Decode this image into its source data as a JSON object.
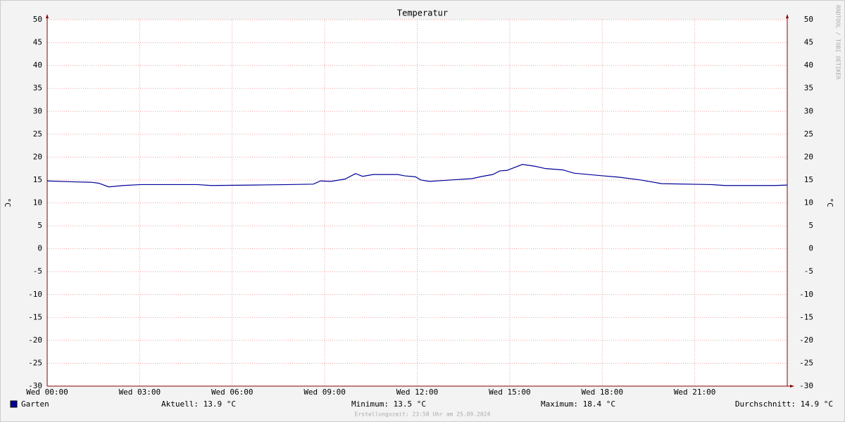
{
  "chart_data": {
    "type": "line",
    "title": "Temperatur",
    "y_label": "°C",
    "y2_label": "°C",
    "watermark": "RRDTOOL / TOBI OETIKER",
    "footer": "Erstellungszeit: 23:58 Uhr am 25.09.2024",
    "xlim": [
      0,
      24
    ],
    "xticks": [
      {
        "value": 0,
        "label": "Wed 00:00"
      },
      {
        "value": 3,
        "label": "Wed 03:00"
      },
      {
        "value": 6,
        "label": "Wed 06:00"
      },
      {
        "value": 9,
        "label": "Wed 09:00"
      },
      {
        "value": 12,
        "label": "Wed 12:00"
      },
      {
        "value": 15,
        "label": "Wed 15:00"
      },
      {
        "value": 18,
        "label": "Wed 18:00"
      },
      {
        "value": 21,
        "label": "Wed 21:00"
      }
    ],
    "ylim": [
      -30,
      50
    ],
    "yticks": [
      -30,
      -25,
      -20,
      -15,
      -10,
      -5,
      0,
      5,
      10,
      15,
      20,
      25,
      30,
      35,
      40,
      45,
      50
    ],
    "grid": true,
    "x": [
      0,
      0.87,
      1.44,
      1.67,
      2.0,
      2.47,
      3.04,
      4.86,
      5.32,
      6.69,
      7.83,
      8.63,
      8.86,
      9.2,
      9.66,
      10.0,
      10.23,
      10.57,
      11.37,
      11.6,
      11.94,
      12.12,
      12.4,
      13.08,
      13.77,
      14.11,
      14.45,
      14.68,
      14.91,
      15.41,
      15.82,
      16.16,
      16.73,
      17.08,
      17.88,
      18.56,
      19.25,
      19.93,
      21.53,
      21.99,
      23.58,
      24
    ],
    "series": [
      {
        "name": "Garten",
        "color": "#000099",
        "values": [
          14.8,
          14.6,
          14.5,
          14.3,
          13.5,
          13.8,
          14.0,
          14.0,
          13.8,
          13.9,
          14.0,
          14.1,
          14.8,
          14.7,
          15.2,
          16.4,
          15.8,
          16.2,
          16.2,
          15.9,
          15.7,
          15.0,
          14.7,
          15.0,
          15.3,
          15.8,
          16.2,
          17.0,
          17.1,
          18.4,
          18.0,
          17.5,
          17.2,
          16.5,
          16.0,
          15.6,
          15.0,
          14.2,
          14.0,
          13.8,
          13.8,
          13.9
        ]
      }
    ],
    "legend_stats": [
      "Aktuell: 13.9 °C",
      "Minimum: 13.5 °C",
      "Maximum: 18.4 °C",
      "Durchschnitt: 14.9 °C"
    ]
  }
}
